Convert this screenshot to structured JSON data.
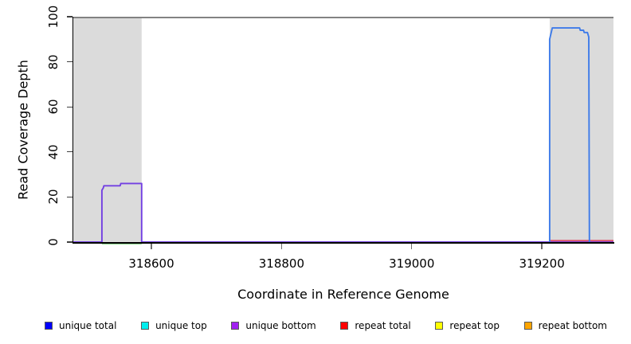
{
  "figure": {
    "xlabel": "Coordinate in Reference Genome",
    "ylabel": "Read Coverage Depth"
  },
  "chart_data": {
    "type": "line",
    "title": "",
    "xlabel": "Coordinate in Reference Genome",
    "ylabel": "Read Coverage Depth",
    "xlim": [
      318480,
      319310
    ],
    "ylim": [
      0,
      100
    ],
    "x_ticks": [
      318600,
      318800,
      319000,
      319200
    ],
    "y_ticks": [
      0,
      20,
      40,
      60,
      80,
      100
    ],
    "grid": false,
    "background_color": "#ffffff",
    "repeat_region_color": "#dbdbdb",
    "repeat_regions": [
      [
        318480,
        318585
      ],
      [
        319212,
        319310
      ]
    ],
    "max_coverage_line": {
      "y": 100,
      "color": "#828282"
    },
    "series": [
      {
        "name": "unique bottom",
        "color": "#7340e2",
        "points": [
          [
            318480,
            0
          ],
          [
            318524,
            0
          ],
          [
            318524,
            23
          ],
          [
            318526,
            24
          ],
          [
            318527,
            25
          ],
          [
            318552,
            25
          ],
          [
            318553,
            26
          ],
          [
            318585,
            26
          ],
          [
            318585,
            0
          ],
          [
            319310,
            0
          ]
        ]
      },
      {
        "name": "unique top",
        "color": "#98de98",
        "points": [
          [
            318524,
            0
          ],
          [
            318585,
            0
          ]
        ]
      },
      {
        "name": "repeat total",
        "color": "#e0536e",
        "points": [
          [
            319212,
            0
          ],
          [
            319310,
            0
          ]
        ]
      },
      {
        "name": "unique total",
        "color": "#3e7be9",
        "points": [
          [
            319212,
            0
          ],
          [
            319212,
            90
          ],
          [
            319216,
            95
          ],
          [
            319258,
            95
          ],
          [
            319259,
            94
          ],
          [
            319264,
            94
          ],
          [
            319265,
            93
          ],
          [
            319270,
            93
          ],
          [
            319272,
            91
          ],
          [
            319273,
            0
          ]
        ]
      }
    ],
    "legend_position": "bottom",
    "legend": [
      {
        "label": "unique total",
        "color": "#0000ff"
      },
      {
        "label": "unique top",
        "color": "#00eeee"
      },
      {
        "label": "unique bottom",
        "color": "#a020f0"
      },
      {
        "label": "repeat total",
        "color": "#ff0000"
      },
      {
        "label": "repeat top",
        "color": "#ffff00"
      },
      {
        "label": "repeat bottom",
        "color": "#ffa500"
      }
    ]
  }
}
